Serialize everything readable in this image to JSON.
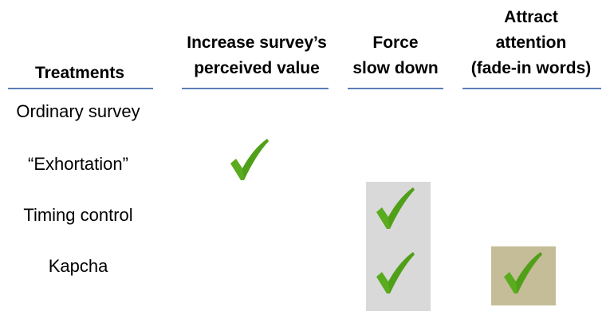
{
  "table": {
    "headers": {
      "treatments": "Treatments",
      "perceived_value": [
        "Increase survey’s",
        "perceived value"
      ],
      "slow_down": [
        "Force",
        "slow down"
      ],
      "attention": [
        "Attract",
        "attention",
        "(fade-in words)"
      ]
    },
    "rows": [
      {
        "label": "Ordinary survey",
        "checks": [
          false,
          false,
          false
        ]
      },
      {
        "label": "“Exhortation”",
        "checks": [
          true,
          false,
          false
        ]
      },
      {
        "label": "Timing control",
        "checks": [
          false,
          true,
          false
        ]
      },
      {
        "label": "Kapcha",
        "checks": [
          false,
          true,
          true
        ]
      }
    ]
  },
  "colors": {
    "rule": "#5b7fb8",
    "check": "#5aab1e",
    "check_shade": "#3f8a12",
    "slow_down_highlight": "#d9d9d9",
    "attention_highlight": "#c4bd97"
  },
  "icons": {
    "check": "check-mark-icon"
  }
}
